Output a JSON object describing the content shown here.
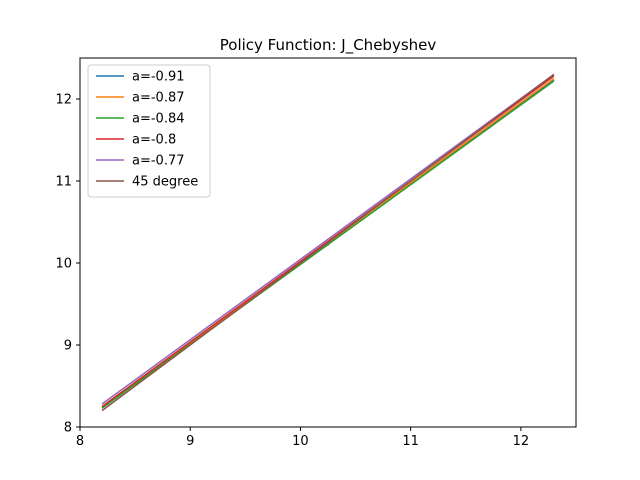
{
  "chart_data": {
    "type": "line",
    "title": "Policy Function: J_Chebyshev",
    "xlabel": "",
    "ylabel": "",
    "xlim": [
      8,
      12.5
    ],
    "ylim": [
      8,
      12.5
    ],
    "xticks": [
      8,
      9,
      10,
      11,
      12
    ],
    "yticks": [
      8,
      9,
      10,
      11,
      12
    ],
    "grid": false,
    "legend_position": "top-left",
    "series": [
      {
        "name": "a=-0.91",
        "color": "#1f77b4",
        "x": [
          8.2,
          10.2,
          10.25,
          10.3,
          12.3
        ],
        "y": [
          8.23,
          10.2,
          10.22,
          10.3,
          12.23
        ]
      },
      {
        "name": "a=-0.87",
        "color": "#ff7f0e",
        "x": [
          8.2,
          12.3
        ],
        "y": [
          8.24,
          12.25
        ]
      },
      {
        "name": "a=-0.84",
        "color": "#2ca02c",
        "x": [
          8.2,
          12.3
        ],
        "y": [
          8.23,
          12.22
        ]
      },
      {
        "name": "a=-0.8",
        "color": "#d62728",
        "x": [
          8.2,
          12.3
        ],
        "y": [
          8.25,
          12.28
        ]
      },
      {
        "name": "a=-0.77",
        "color": "#9467bd",
        "x": [
          8.2,
          12.3
        ],
        "y": [
          8.28,
          12.3
        ]
      },
      {
        "name": "45 degree",
        "color": "#8c564b",
        "x": [
          8.2,
          12.3
        ],
        "y": [
          8.2,
          12.3
        ]
      }
    ]
  }
}
